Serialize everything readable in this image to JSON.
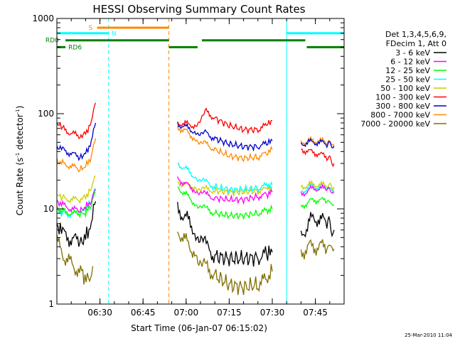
{
  "chart_data": {
    "type": "line",
    "title": "HESSI Observing Summary Count Rates",
    "xlabel": "Start Time (06-Jan-07 06:15:02)",
    "ylabel_main": "Count Rate (s",
    "ylabel_sup1": "-1",
    "ylabel_mid": " detector",
    "ylabel_sup2": "-1",
    "ylabel_end": ")",
    "y_scale": "log",
    "ylim": [
      1,
      1000
    ],
    "x_minutes_range": [
      0,
      100
    ],
    "x_ticks": [
      {
        "min": 15,
        "label": "06:30"
      },
      {
        "min": 30,
        "label": "06:45"
      },
      {
        "min": 45,
        "label": "07:00"
      },
      {
        "min": 60,
        "label": "07:15"
      },
      {
        "min": 75,
        "label": "07:30"
      },
      {
        "min": 90,
        "label": "07:45"
      }
    ],
    "y_ticks": [
      {
        "value": 1,
        "label": "1"
      },
      {
        "value": 10,
        "label": "10"
      },
      {
        "value": 100,
        "label": "100"
      },
      {
        "value": 1000,
        "label": "1000"
      }
    ],
    "legend_header": [
      "Det 1,3,4,5,6,9,",
      "FDecim 1, Att 0"
    ],
    "legend_position": "right",
    "footer_timestamp": "25-Mar-2010 11:04",
    "series": [
      {
        "name": "3 - 6 keV",
        "color": "#000000",
        "segments": [
          {
            "x": [
              0,
              2,
              5,
              8,
              10,
              12,
              13.5
            ],
            "y": [
              7.0,
              5.5,
              4.8,
              4.5,
              5.0,
              7.0,
              12.0
            ]
          },
          {
            "x": [
              42,
              45,
              48,
              52,
              55,
              60,
              65,
              70,
              73,
              75
            ],
            "y": [
              10.0,
              8.0,
              6.0,
              4.0,
              3.2,
              3.0,
              3.0,
              3.1,
              3.3,
              3.5
            ]
          },
          {
            "x": [
              85,
              88,
              91,
              94,
              96.5
            ],
            "y": [
              5.0,
              7.5,
              8.0,
              7.0,
              6.0
            ]
          }
        ]
      },
      {
        "name": "6 - 12 keV",
        "color": "#ff00ff",
        "segments": [
          {
            "x": [
              0,
              2,
              5,
              8,
              10,
              12,
              13.5
            ],
            "y": [
              12.0,
              11.0,
              10.0,
              9.5,
              10.5,
              12.0,
              16.0
            ]
          },
          {
            "x": [
              42,
              45,
              48,
              52,
              55,
              60,
              65,
              70,
              73,
              75
            ],
            "y": [
              21.0,
              18.0,
              16.0,
              14.0,
              13.0,
              12.5,
              12.5,
              13.5,
              14.0,
              15.0
            ]
          },
          {
            "x": [
              85,
              88,
              91,
              94,
              96.5
            ],
            "y": [
              14.0,
              16.0,
              16.5,
              16.0,
              15.0
            ]
          }
        ]
      },
      {
        "name": "12 - 25 keV",
        "color": "#00ff00",
        "segments": [
          {
            "x": [
              0,
              2,
              5,
              8,
              10,
              12,
              13.5
            ],
            "y": [
              10.0,
              9.5,
              9.0,
              8.8,
              9.0,
              11.0,
              15.0
            ]
          },
          {
            "x": [
              42,
              45,
              48,
              52,
              55,
              60,
              65,
              70,
              73,
              75
            ],
            "y": [
              17.0,
              14.0,
              11.5,
              10.0,
              9.0,
              8.5,
              8.5,
              9.0,
              9.5,
              10.0
            ]
          },
          {
            "x": [
              85,
              88,
              91,
              94,
              96.5
            ],
            "y": [
              10.5,
              12.0,
              12.5,
              12.0,
              11.0
            ]
          }
        ]
      },
      {
        "name": "25 - 50 keV",
        "color": "#00ffff",
        "segments": [
          {
            "x": [
              0,
              2,
              5,
              8,
              10,
              12,
              13.5
            ],
            "y": [
              9.5,
              9.0,
              8.8,
              9.0,
              10.0,
              12.0,
              16.0
            ]
          },
          {
            "x": [
              42,
              45,
              48,
              52,
              55,
              60,
              65,
              70,
              73,
              75
            ],
            "y": [
              30.0,
              26.0,
              22.0,
              19.0,
              17.0,
              16.0,
              16.0,
              16.5,
              17.5,
              18.0
            ]
          },
          {
            "x": [
              85,
              88,
              91,
              94,
              96.5
            ],
            "y": [
              15.0,
              17.0,
              17.0,
              16.5,
              15.5
            ]
          }
        ]
      },
      {
        "name": "50 - 100 keV",
        "color": "#cccc00",
        "segments": [
          {
            "x": [
              0,
              2,
              5,
              8,
              10,
              12,
              13.5
            ],
            "y": [
              14.0,
              13.0,
              12.5,
              12.5,
              13.5,
              16.0,
              22.0
            ]
          },
          {
            "x": [
              42,
              45,
              48,
              52,
              55,
              60,
              65,
              70,
              73,
              75
            ],
            "y": [
              19.0,
              18.0,
              17.0,
              16.0,
              15.5,
              15.0,
              15.0,
              15.5,
              16.0,
              16.5
            ]
          },
          {
            "x": [
              85,
              88,
              91,
              94,
              96.5
            ],
            "y": [
              17.0,
              18.0,
              18.0,
              17.5,
              17.0
            ]
          }
        ]
      },
      {
        "name": "100 - 300 keV",
        "color": "#ff0000",
        "segments": [
          {
            "x": [
              0,
              2,
              5,
              8,
              10,
              12,
              13.5
            ],
            "y": [
              80.0,
              70.0,
              62.0,
              58.0,
              62.0,
              80.0,
              130.0
            ]
          },
          {
            "x": [
              42,
              45,
              48,
              52,
              55,
              60,
              65,
              70,
              73,
              75
            ],
            "y": [
              80.0,
              78.0,
              75.0,
              105.0,
              90.0,
              75.0,
              68.0,
              68.0,
              75.0,
              85.0
            ]
          },
          {
            "x": [
              85,
              88,
              91,
              94,
              96.5
            ],
            "y": [
              42.0,
              40.0,
              38.0,
              35.0,
              30.0
            ]
          }
        ]
      },
      {
        "name": "300 - 800 keV",
        "color": "#0000cc",
        "segments": [
          {
            "x": [
              0,
              2,
              5,
              8,
              10,
              12,
              13.5
            ],
            "y": [
              45.0,
              42.0,
              38.0,
              35.0,
              38.0,
              50.0,
              80.0
            ]
          },
          {
            "x": [
              42,
              45,
              48,
              52,
              55,
              60,
              65,
              70,
              73,
              75
            ],
            "y": [
              78.0,
              72.0,
              65.0,
              62.0,
              55.0,
              48.0,
              45.0,
              45.0,
              48.0,
              52.0
            ]
          },
          {
            "x": [
              85,
              88,
              91,
              94,
              96.5
            ],
            "y": [
              48.0,
              50.0,
              50.0,
              48.0,
              46.0
            ]
          }
        ]
      },
      {
        "name": "800 - 7000 keV",
        "color": "#ff8800",
        "segments": [
          {
            "x": [
              0,
              2,
              5,
              8,
              10,
              12,
              13.5
            ],
            "y": [
              32.0,
              30.0,
              28.0,
              26.0,
              28.0,
              35.0,
              55.0
            ]
          },
          {
            "x": [
              42,
              45,
              48,
              52,
              55,
              60,
              65,
              70,
              73,
              75
            ],
            "y": [
              72.0,
              65.0,
              55.0,
              48.0,
              42.0,
              36.0,
              34.0,
              35.0,
              38.0,
              42.0
            ]
          },
          {
            "x": [
              85,
              88,
              91,
              94,
              96.5
            ],
            "y": [
              50.0,
              52.0,
              52.0,
              50.0,
              48.0
            ]
          }
        ]
      },
      {
        "name": "7000 - 20000 keV",
        "color": "#807000",
        "segments": [
          {
            "x": [
              0,
              3,
              6,
              9,
              11,
              12.5
            ],
            "y": [
              4.5,
              3.0,
              2.5,
              2.0,
              1.8,
              2.5
            ]
          },
          {
            "x": [
              42,
              45,
              48,
              52,
              55,
              60,
              65,
              70,
              73,
              75
            ],
            "y": [
              6.0,
              4.5,
              3.5,
              2.5,
              2.0,
              1.6,
              1.5,
              1.6,
              1.8,
              2.2
            ]
          },
          {
            "x": [
              85,
              88,
              91,
              94,
              96.5
            ],
            "y": [
              3.5,
              4.0,
              4.0,
              4.0,
              3.8
            ]
          }
        ]
      }
    ],
    "flag_bars": [
      {
        "name": "S",
        "color": "#ff8800",
        "y": 800,
        "x": [
          14,
          39
        ],
        "label_x": 11
      },
      {
        "name": "N",
        "color": "#00ffff",
        "y": 700,
        "x": [
          0,
          18
        ],
        "label_x": 19
      },
      {
        "name": "N",
        "color": "#00ffff",
        "y": 700,
        "x": [
          80,
          100
        ],
        "label_x": null
      },
      {
        "name": "RD0",
        "color": "#008000",
        "y": 590,
        "x": [
          3,
          39
        ],
        "label_x": -4
      },
      {
        "name": "RD0",
        "color": "#008000",
        "y": 590,
        "x": [
          50.5,
          86.5
        ],
        "label_x": null
      },
      {
        "name": "RD6",
        "color": "#008000",
        "y": 500,
        "x": [
          0,
          3
        ],
        "label_x": 4
      },
      {
        "name": "RD6",
        "color": "#008000",
        "y": 500,
        "x": [
          39,
          49
        ],
        "label_x": null
      },
      {
        "name": "RD6",
        "color": "#008000",
        "y": 500,
        "x": [
          87,
          100
        ],
        "label_x": null
      }
    ],
    "vlines": [
      {
        "x": 0,
        "color": "#00ffff",
        "style": "solid"
      },
      {
        "x": 18,
        "color": "#00ffff",
        "style": "dashed"
      },
      {
        "x": 39,
        "color": "#ff8800",
        "style": "dashed"
      },
      {
        "x": 80,
        "color": "#00ffff",
        "style": "solid"
      },
      {
        "x": 100,
        "color": "#00ffff",
        "style": "dashed"
      }
    ]
  }
}
